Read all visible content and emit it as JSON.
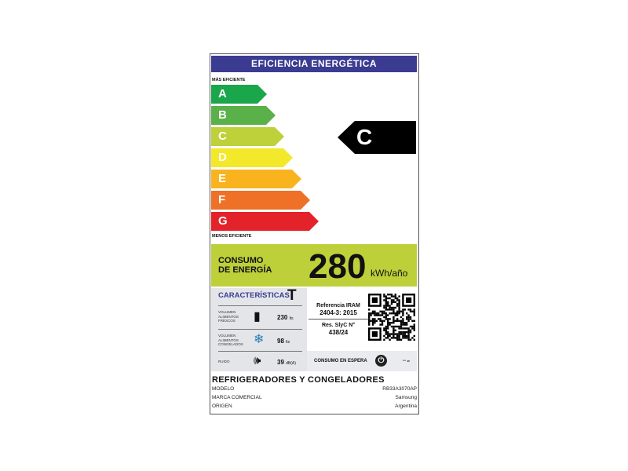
{
  "title": "EFICIENCIA ENERGÉTICA",
  "more_efficient": "MÁS EFICIENTE",
  "less_efficient": "MENOS EFICIENTE",
  "classes": [
    {
      "letter": "A",
      "color": "#1aa64a"
    },
    {
      "letter": "B",
      "color": "#5ab14a"
    },
    {
      "letter": "C",
      "color": "#bed03a"
    },
    {
      "letter": "D",
      "color": "#f4e82b"
    },
    {
      "letter": "E",
      "color": "#f9b31f"
    },
    {
      "letter": "F",
      "color": "#ee7127"
    },
    {
      "letter": "G",
      "color": "#e42229"
    }
  ],
  "rating": "C",
  "consumption": {
    "label_1": "CONSUMO",
    "label_2": "DE ENERGÍA",
    "value": "280",
    "unit": "kWh/año"
  },
  "characteristics": {
    "heading": "CARACTERÍSTICAS",
    "climate_class": "T",
    "rows": [
      {
        "label": "VOLUMEN ALIMENTOS FRESCOS",
        "value": "230",
        "unit": "lts",
        "icon": "fridge-icon"
      },
      {
        "label": "VOLUMEN ALIMENTOS CONGELADOS",
        "value": "98",
        "unit": "lts",
        "icon": "freezer-icon"
      },
      {
        "label": "RUIDO",
        "value": "39",
        "unit": "dB(A)",
        "icon": "speaker-icon"
      }
    ]
  },
  "reference": {
    "line1": "Referencia IRAM",
    "line2": "2404-3: 2015",
    "line3": "Res. SlyC N°",
    "line4": "438/24"
  },
  "standby": {
    "label": "CONSUMO EN ESPERA",
    "value": "--",
    "unit": "w"
  },
  "product": {
    "type": "REFRIGERADORES Y CONGELADORES",
    "rows": [
      {
        "k": "MODELO",
        "v": "RB33A3070AP"
      },
      {
        "k": "MARCA COMERCIAL",
        "v": "Samsung"
      },
      {
        "k": "ORIGEN",
        "v": "Argentina"
      }
    ]
  }
}
